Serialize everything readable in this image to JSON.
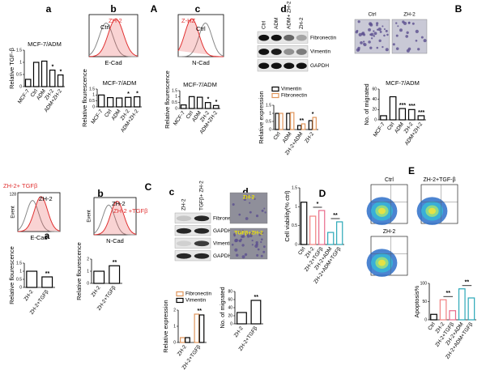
{
  "chart_data": [
    {
      "type": "bar",
      "title": "MCF-7/ADM",
      "ylabel": "Relative TGF-β",
      "categories": [
        "MCF-7",
        "Ctrl",
        "ADM",
        "ZH-2",
        "ADM+ZH-2"
      ],
      "values": [
        0.3,
        1.0,
        1.05,
        0.68,
        0.48
      ],
      "color": "#000000",
      "ylim": [
        0,
        1.5
      ],
      "yticks": [
        0,
        0.5,
        1,
        1.5
      ],
      "annotations": [
        {
          "text": "*",
          "x": "ZH-2"
        },
        {
          "text": "*",
          "x": "ADM+ZH-2"
        }
      ]
    },
    {
      "type": "bar",
      "title": "MCF-7/ADM",
      "ylabel": "Relative flourescence",
      "categories": [
        "MCF-7",
        "Ctrl",
        "ADM",
        "ZH-2",
        "ADM+ZH-2"
      ],
      "values": [
        1.0,
        0.78,
        0.75,
        0.8,
        0.85
      ],
      "color": "#000000",
      "ylim": [
        0,
        1.5
      ],
      "yticks": [
        0,
        0.5,
        1,
        1.5
      ],
      "annotations": [
        {
          "text": "*",
          "x": "ZH-2"
        },
        {
          "text": "*",
          "x": "ADM+ZH-2"
        }
      ]
    },
    {
      "type": "bar",
      "title": "MCF-7/ADM",
      "ylabel": "Relative flourescence",
      "categories": [
        "MCF-7",
        "Ctrl",
        "ADM",
        "ZH-2",
        "ADM+ZH-2"
      ],
      "values": [
        0.3,
        1.0,
        0.95,
        0.5,
        0.25
      ],
      "color": "#000000",
      "ylim": [
        0,
        1.5
      ],
      "yticks": [
        0,
        0.5,
        1,
        1.5
      ],
      "annotations": [
        {
          "text": "*",
          "x": "ZH-2"
        },
        {
          "text": "*",
          "x": "ADM+ZH-2"
        }
      ]
    },
    {
      "type": "bar",
      "ylabel": "Relative expression",
      "categories": [
        "Ctrl",
        "ADM",
        "ZH-2+ADM",
        "ZH-2"
      ],
      "series": [
        {
          "name": "Vimentin",
          "color": "#000000",
          "values": [
            1.0,
            1.0,
            0.25,
            0.55
          ]
        },
        {
          "name": "Fibronectin",
          "color": "#e0955a",
          "values": [
            1.0,
            1.05,
            0.35,
            0.75
          ]
        }
      ],
      "ylim": [
        0,
        1.5
      ],
      "yticks": [
        0,
        0.5,
        1,
        1.5
      ],
      "legend": "upper left",
      "annotations": [
        {
          "text": "**",
          "x": "ZH-2+ADM"
        },
        {
          "text": "*",
          "x": "ZH-2"
        }
      ]
    },
    {
      "type": "bar",
      "title": "MCF-7/ADM",
      "ylabel": "No. of migrated",
      "categories": [
        "MCF-7",
        "Ctrl",
        "ADM",
        "ZH-2",
        "ADM+ZH-2"
      ],
      "values": [
        8,
        45,
        22,
        20,
        8
      ],
      "color": "#000000",
      "ylim": [
        0,
        60
      ],
      "yticks": [
        0,
        20,
        40,
        60
      ],
      "annotations": [
        {
          "text": "***",
          "x": "ADM"
        },
        {
          "text": "***",
          "x": "ZH-2"
        },
        {
          "text": "***",
          "x": "ADM+ZH-2"
        }
      ]
    },
    {
      "type": "bar",
      "ylabel": "Relative flourescence",
      "categories": [
        "ZH-2",
        "ZH-2+TGFβ"
      ],
      "values": [
        1.0,
        0.65
      ],
      "color": "#000000",
      "ylim": [
        0,
        1.5
      ],
      "yticks": [
        0,
        0.5,
        1,
        1.5
      ],
      "annotations": [
        {
          "text": "**",
          "x": "ZH-2+TGFβ"
        }
      ]
    },
    {
      "type": "bar",
      "ylabel": "Relative flourescence",
      "categories": [
        "ZH-2",
        "ZH-2+TGFβ"
      ],
      "values": [
        1.0,
        1.45
      ],
      "color": "#000000",
      "ylim": [
        0,
        2
      ],
      "yticks": [
        0,
        1,
        2
      ],
      "annotations": [
        {
          "text": "**",
          "x": "ZH-2+TGFβ"
        }
      ]
    },
    {
      "type": "bar",
      "ylabel": "Relative expression",
      "categories": [
        "ZH-2",
        "ZH-2+TGFβ"
      ],
      "series": [
        {
          "name": "Fibronectin",
          "color": "#e0955a",
          "values": [
            0.3,
            1.75
          ]
        },
        {
          "name": "Vimentin",
          "color": "#000000",
          "values": [
            0.3,
            1.7
          ]
        }
      ],
      "ylim": [
        0,
        2
      ],
      "yticks": [
        0,
        1,
        2
      ],
      "legend": "upper left",
      "annotations": [
        {
          "text": "**",
          "x": "ZH-2+TGFβ"
        }
      ]
    },
    {
      "type": "bar",
      "ylabel": "No. of migrated",
      "categories": [
        "ZH-2",
        "ZH-2+TGFβ"
      ],
      "values": [
        28,
        58
      ],
      "color": "#000000",
      "ylim": [
        0,
        80
      ],
      "yticks": [
        0,
        20,
        40,
        60,
        80
      ],
      "annotations": [
        {
          "text": "**",
          "x": "ZH-2+TGFβ"
        }
      ]
    },
    {
      "type": "bar",
      "ylabel": "Cell viability(% ctrl)",
      "categories": [
        "Ctrl",
        "ZH-2",
        "ZH-2+TGFβ",
        "ZH-2+ADM",
        "ZH-2+ADM+TGFβ"
      ],
      "values": [
        1.12,
        0.75,
        0.9,
        0.32,
        0.6
      ],
      "colors": [
        "#000000",
        "#f08080",
        "#e86a8a",
        "#2aa8b8",
        "#2aa8b8"
      ],
      "ylim": [
        0,
        1.5
      ],
      "yticks": [
        0,
        0.5,
        1,
        1.5
      ],
      "annotations": [
        {
          "text": "*",
          "x": [
            "ZH-2",
            "ZH-2+TGFβ"
          ]
        },
        {
          "text": "**",
          "x": [
            "ZH-2+ADM",
            "ZH-2+ADM+TGFβ"
          ]
        }
      ]
    },
    {
      "type": "bar",
      "ylabel": "Apoptosis%",
      "categories": [
        "Ctrl",
        "ZH-2",
        "ZH-2+TGFβ",
        "ZH-2+ADM",
        "ZH-2+ADM+TGFβ"
      ],
      "values": [
        15,
        55,
        25,
        85,
        60
      ],
      "colors": [
        "#000000",
        "#f08080",
        "#e86a8a",
        "#2aa8b8",
        "#2aa8b8"
      ],
      "ylim": [
        0,
        100
      ],
      "yticks": [
        0,
        50,
        100
      ],
      "annotations": [
        {
          "text": "**",
          "x": [
            "ZH-2",
            "ZH-2+TGFβ"
          ]
        },
        {
          "text": "**",
          "x": [
            "ZH-2+ADM",
            "ZH-2+ADM+TGFβ"
          ]
        }
      ]
    }
  ],
  "figure": {
    "panel_letters": [
      "a",
      "b",
      "A",
      "c",
      "d",
      "B",
      "C",
      "a",
      "b",
      "c",
      "d",
      "D",
      "E"
    ],
    "flow": [
      {
        "curves": [
          "Ctrl",
          "ZH-2"
        ],
        "xlabel": "E-Cad"
      },
      {
        "curves": [
          "Ctrl",
          "Z-HZ"
        ],
        "xlabel": "N-Cad"
      },
      {
        "curves": [
          "ZH-2",
          "ZH-2+ TGFβ"
        ],
        "xlabel": "E-Cad",
        "ylabel": "Event",
        "ytick": 128
      },
      {
        "curves": [
          "ZH-2",
          "ZH-2 +TGFβ"
        ],
        "xlabel": "N-Cad",
        "ylabel": "Event"
      }
    ],
    "blots": [
      {
        "columns": [
          "Ctrl",
          "ADM",
          "ADM+ ZH-2",
          "ZH-2"
        ],
        "rows": [
          "Fibronectin",
          "Vimentin",
          "GAPDH"
        ]
      },
      {
        "columns": [
          "ZH-2",
          "TGFβ+ ZH-2"
        ],
        "rows": [
          "Fibronectin",
          "GAPDH",
          "Vimentin",
          "GAPDH"
        ]
      }
    ],
    "micrographs": [
      {
        "labels": [
          "Ctrl",
          "ZH-2"
        ]
      },
      {
        "labels": [
          "ZH-2",
          "TGFβ+ZH-2"
        ]
      }
    ],
    "cytometry": [
      "Ctrl",
      "ZH-2+TGF-β",
      "ZH-2"
    ]
  }
}
